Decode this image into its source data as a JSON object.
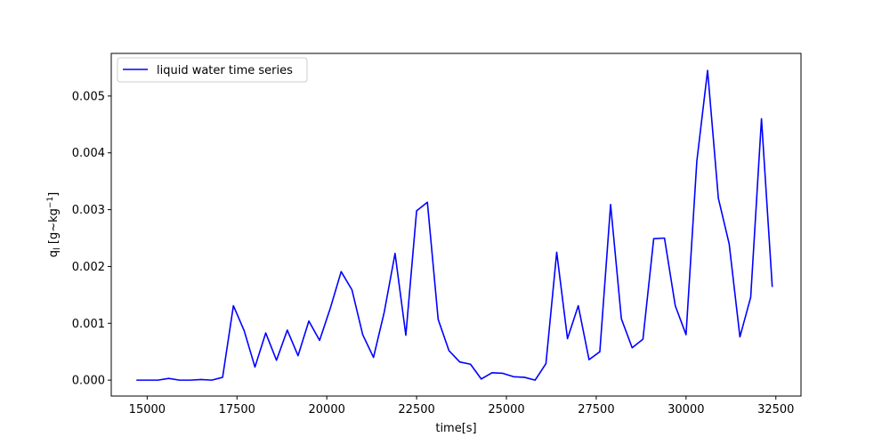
{
  "chart_data": {
    "type": "line",
    "xlabel": "time[s]",
    "ylabel_base": "q",
    "ylabel_sub": "l",
    "ylabel_unit_open": " [g~kg",
    "ylabel_unit_sup": "−1",
    "ylabel_unit_close": "]",
    "xlim": [
      14000,
      33200
    ],
    "ylim": [
      -0.00028,
      0.00575
    ],
    "xticks": [
      15000,
      17500,
      20000,
      22500,
      25000,
      27500,
      30000,
      32500
    ],
    "yticks": [
      0.0,
      0.001,
      0.002,
      0.003,
      0.004,
      0.005
    ],
    "xtick_labels": [
      "15000",
      "17500",
      "20000",
      "22500",
      "25000",
      "27500",
      "30000",
      "32500"
    ],
    "ytick_labels": [
      "0.000",
      "0.001",
      "0.002",
      "0.003",
      "0.004",
      "0.005"
    ],
    "grid": false,
    "legend_position": "top-left",
    "series": [
      {
        "name": "liquid water time series",
        "color": "#0000ff",
        "x": [
          14700,
          15000,
          15300,
          15600,
          15900,
          16200,
          16500,
          16800,
          17100,
          17400,
          17700,
          18000,
          18300,
          18600,
          18900,
          19200,
          19500,
          19800,
          20100,
          20400,
          20700,
          21000,
          21300,
          21600,
          21900,
          22200,
          22500,
          22800,
          23100,
          23400,
          23700,
          24000,
          24300,
          24600,
          24900,
          25200,
          25500,
          25800,
          26100,
          26400,
          26700,
          27000,
          27300,
          27600,
          27900,
          28200,
          28500,
          28800,
          29100,
          29400,
          29700,
          30000,
          30300,
          30600,
          30900,
          31200,
          31500,
          31800,
          32100,
          32400
        ],
        "y": [
          0.0,
          0.0,
          0.0,
          3e-05,
          0.0,
          0.0,
          1e-05,
          0.0,
          5e-05,
          0.00131,
          0.00087,
          0.00023,
          0.00083,
          0.00035,
          0.00088,
          0.00043,
          0.00104,
          0.0007,
          0.00127,
          0.00191,
          0.00159,
          0.0008,
          0.0004,
          0.0012,
          0.00223,
          0.00079,
          0.00298,
          0.00313,
          0.00107,
          0.00052,
          0.00032,
          0.00028,
          2e-05,
          0.00013,
          0.00012,
          6e-05,
          5e-05,
          0.0,
          0.00029,
          0.00225,
          0.00073,
          0.00131,
          0.00036,
          0.0005,
          0.00309,
          0.00108,
          0.00057,
          0.00072,
          0.00249,
          0.0025,
          0.00131,
          0.0008,
          0.00385,
          0.00545,
          0.0032,
          0.0024,
          0.00076,
          0.00146,
          0.0046,
          0.00164
        ]
      }
    ]
  }
}
